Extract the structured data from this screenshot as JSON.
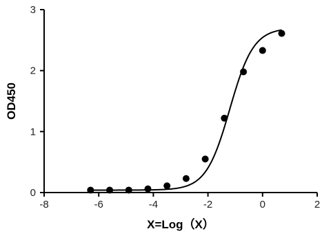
{
  "chart_data": {
    "type": "scatter",
    "xlabel": "X=Log（X）",
    "ylabel": "OD450",
    "xlim": [
      -8,
      2
    ],
    "ylim": [
      0,
      3
    ],
    "xticks": [
      "-8",
      "-6",
      "-4",
      "-2",
      "0",
      "2"
    ],
    "yticks": [
      "0",
      "1",
      "2",
      "3"
    ],
    "grid": false,
    "legend": "none",
    "series": [
      {
        "points": [
          {
            "x": -6.3,
            "y": 0.04
          },
          {
            "x": -5.6,
            "y": 0.04
          },
          {
            "x": -4.9,
            "y": 0.04
          },
          {
            "x": -4.2,
            "y": 0.06
          },
          {
            "x": -3.5,
            "y": 0.11
          },
          {
            "x": -2.8,
            "y": 0.23
          },
          {
            "x": -2.1,
            "y": 0.55
          },
          {
            "x": -1.4,
            "y": 1.22
          },
          {
            "x": -0.7,
            "y": 1.98
          },
          {
            "x": 0.0,
            "y": 2.33
          },
          {
            "x": 0.7,
            "y": 2.61
          }
        ],
        "fit": {
          "model": "sigmoidal dose-response",
          "bottom": 0.04,
          "top": 2.7,
          "logEC50": -1.2,
          "hill_slope": 1.0
        }
      }
    ],
    "colors": {
      "points": "#000000",
      "curve": "#000000",
      "axes": "#000000"
    }
  }
}
